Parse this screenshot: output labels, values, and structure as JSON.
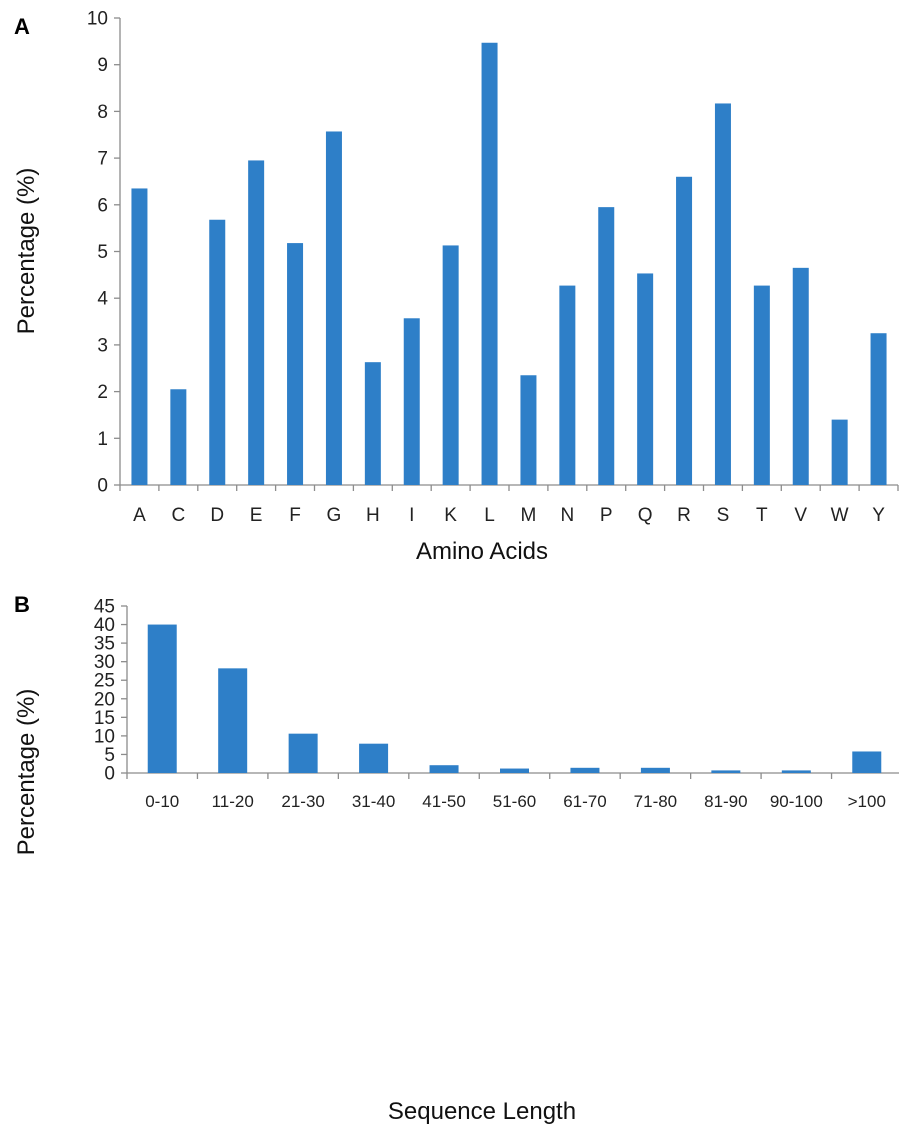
{
  "chart_data": [
    {
      "panel": "A",
      "type": "bar",
      "xlabel": "Amino Acids",
      "ylabel": "Percentage (%)",
      "ylim": [
        0,
        10
      ],
      "yticks": [
        0,
        1,
        2,
        3,
        4,
        5,
        6,
        7,
        8,
        9,
        10
      ],
      "grid": false,
      "bar_color": "#2e7fc8",
      "categories": [
        "A",
        "C",
        "D",
        "E",
        "F",
        "G",
        "H",
        "I",
        "K",
        "L",
        "M",
        "N",
        "P",
        "Q",
        "R",
        "S",
        "T",
        "V",
        "W",
        "Y"
      ],
      "values": [
        6.35,
        2.05,
        5.68,
        6.95,
        5.18,
        7.57,
        2.63,
        3.57,
        5.13,
        9.47,
        2.35,
        4.27,
        5.95,
        4.53,
        6.6,
        8.17,
        4.27,
        4.65,
        1.4,
        3.25
      ]
    },
    {
      "panel": "B",
      "type": "bar",
      "xlabel": "Sequence Length",
      "ylabel": "Percentage (%)",
      "ylim": [
        0,
        45
      ],
      "yticks": [
        0,
        5,
        10,
        15,
        20,
        25,
        30,
        35,
        40,
        45
      ],
      "grid": false,
      "bar_color": "#2e7fc8",
      "categories": [
        "0-10",
        "11-20",
        "21-30",
        "31-40",
        "41-50",
        "51-60",
        "61-70",
        "71-80",
        "81-90",
        "90-100",
        ">100"
      ],
      "values": [
        40,
        28.2,
        10.6,
        7.9,
        2.1,
        1.2,
        1.4,
        1.4,
        0.7,
        0.7,
        5.8
      ]
    }
  ]
}
